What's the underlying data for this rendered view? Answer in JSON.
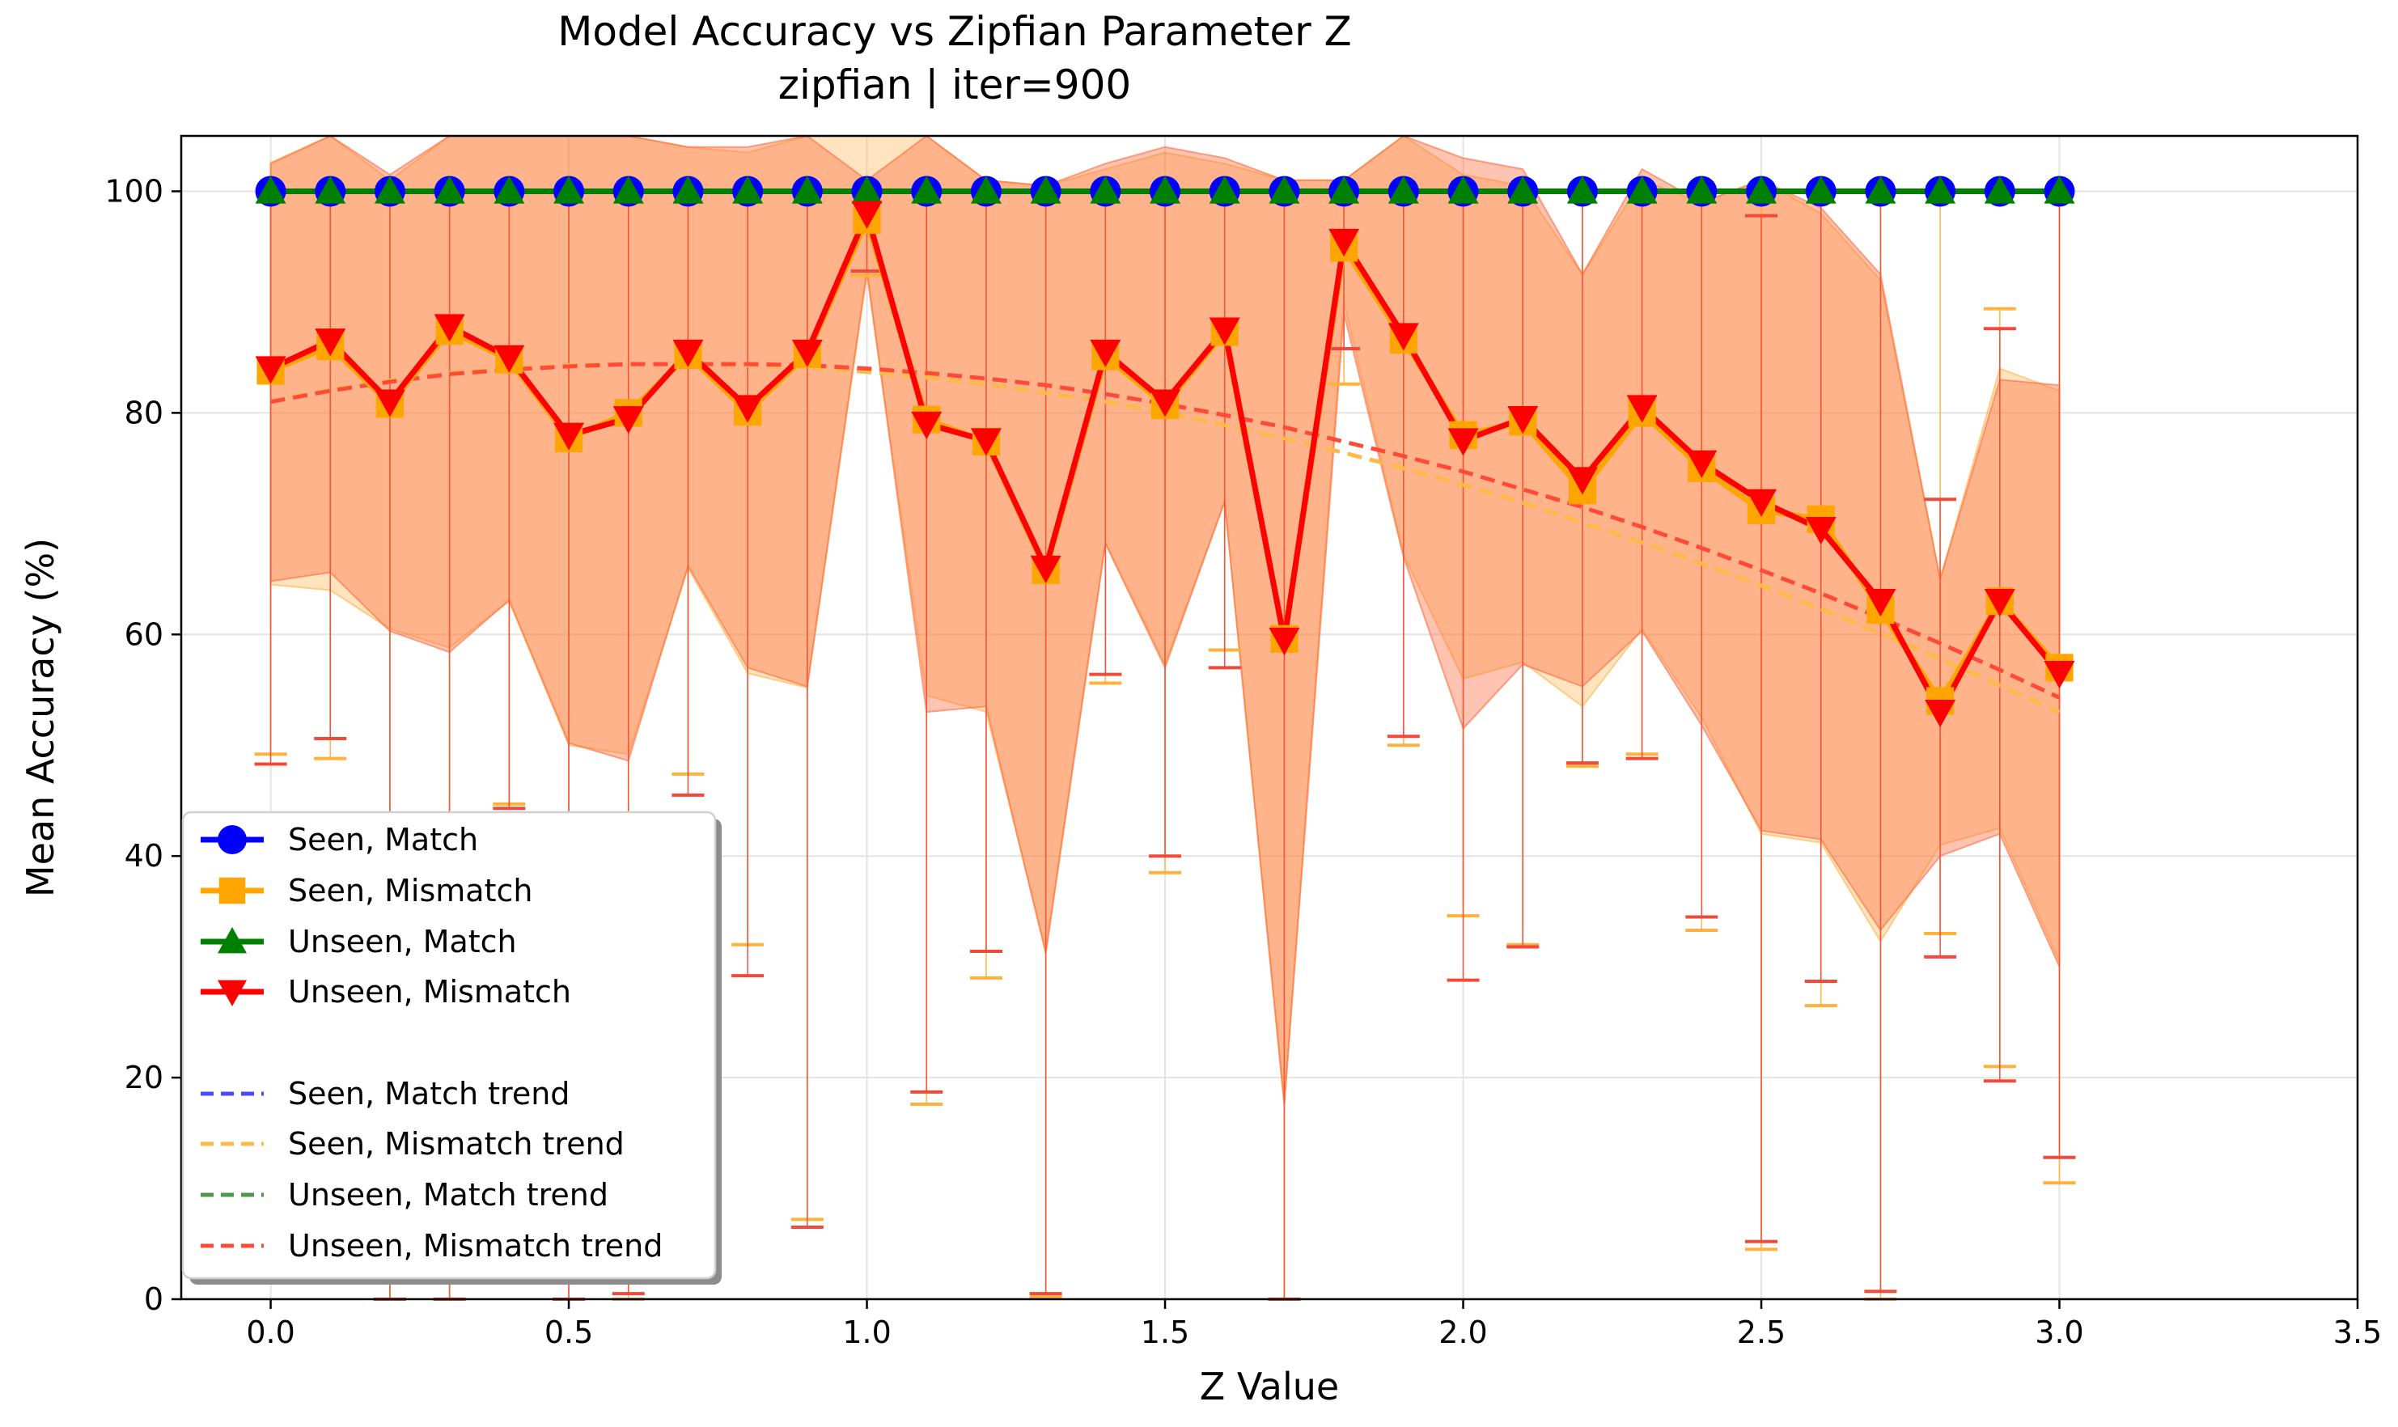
{
  "chart_data": {
    "type": "line",
    "title": "Model Accuracy vs Zipfian Parameter Z",
    "subtitle": "zipfian | iter=900",
    "xlabel": "Z Value",
    "ylabel": "Mean Accuracy (%)",
    "xlim": [
      -0.15,
      3.5
    ],
    "ylim": [
      0,
      105
    ],
    "xticks": [
      "0.0",
      "0.5",
      "1.0",
      "1.5",
      "2.0",
      "2.5",
      "3.0",
      "3.5"
    ],
    "yticks": [
      "0",
      "20",
      "40",
      "60",
      "80",
      "100"
    ],
    "grid": true,
    "legend_position": "lower-left",
    "x": [
      0.0,
      0.1,
      0.2,
      0.3,
      0.4,
      0.5,
      0.6,
      0.7,
      0.8,
      0.9,
      1.0,
      1.1,
      1.2,
      1.3,
      1.4,
      1.5,
      1.6,
      1.7,
      1.8,
      1.9,
      2.0,
      2.1,
      2.2,
      2.3,
      2.4,
      2.5,
      2.6,
      2.7,
      2.8,
      2.9,
      3.0
    ],
    "series": [
      {
        "name": "Seen, Match",
        "color": "#0000ff",
        "marker": "circle",
        "values": [
          100,
          100,
          100,
          100,
          100,
          100,
          100,
          100,
          100,
          100,
          100,
          100,
          100,
          100,
          100,
          100,
          100,
          100,
          100,
          100,
          100,
          100,
          100,
          100,
          100,
          100,
          100,
          100,
          100,
          100,
          100
        ],
        "err_low": [
          100,
          100,
          100,
          100,
          100,
          100,
          100,
          100,
          100,
          100,
          100,
          100,
          100,
          100,
          100,
          100,
          100,
          100,
          100,
          100,
          100,
          100,
          100,
          100,
          100,
          100,
          100,
          100,
          100,
          100,
          100
        ],
        "err_high": [
          100,
          100,
          100,
          100,
          100,
          100,
          100,
          100,
          100,
          100,
          100,
          100,
          100,
          100,
          100,
          100,
          100,
          100,
          100,
          100,
          100,
          100,
          100,
          100,
          100,
          100,
          100,
          100,
          100,
          100,
          100
        ],
        "band_low": [
          100,
          100,
          100,
          100,
          100,
          100,
          100,
          100,
          100,
          100,
          100,
          100,
          100,
          100,
          100,
          100,
          100,
          100,
          100,
          100,
          100,
          100,
          100,
          100,
          100,
          100,
          100,
          100,
          100,
          100,
          100
        ],
        "band_high": [
          100,
          100,
          100,
          100,
          100,
          100,
          100,
          100,
          100,
          100,
          100,
          100,
          100,
          100,
          100,
          100,
          100,
          100,
          100,
          100,
          100,
          100,
          100,
          100,
          100,
          100,
          100,
          100,
          100,
          100,
          100
        ]
      },
      {
        "name": "Seen, Mismatch",
        "color": "#ffa500",
        "marker": "square",
        "values": [
          83.8,
          86.0,
          80.8,
          87.4,
          84.8,
          77.7,
          80.0,
          85.2,
          80.1,
          85.3,
          97.4,
          79.4,
          77.4,
          65.8,
          85.1,
          80.7,
          87.3,
          59.6,
          94.9,
          86.6,
          78.0,
          79.2,
          73.0,
          80.0,
          75.0,
          71.2,
          70.4,
          62.2,
          54.0,
          63.0,
          57.0
        ],
        "err_low": [
          49.2,
          48.8,
          0,
          0,
          44.7,
          0,
          0,
          47.4,
          32.0,
          7.2,
          92.4,
          17.6,
          29.0,
          0.2,
          55.6,
          38.5,
          58.6,
          0,
          82.6,
          50.0,
          34.6,
          32.0,
          48.1,
          49.2,
          33.3,
          4.5,
          26.5,
          0,
          33.0,
          21.0,
          10.5
        ],
        "err_high": [
          100,
          100,
          100,
          100,
          100,
          100,
          100,
          100,
          100,
          100,
          100,
          100,
          100,
          100,
          100,
          100,
          100,
          100,
          100,
          100,
          100,
          100,
          100,
          100,
          100,
          100,
          100,
          100,
          100,
          89.4,
          100
        ],
        "band_low": [
          64.5,
          64.0,
          60.5,
          58.8,
          63.0,
          50.0,
          49.2,
          66.0,
          56.5,
          55.2,
          92.5,
          54.5,
          53.0,
          31.5,
          68.3,
          57.3,
          72.0,
          17.8,
          90.0,
          67.2,
          56.0,
          57.5,
          53.5,
          60.5,
          52.5,
          42.0,
          41.2,
          32.3,
          41.0,
          42.5,
          30.5
        ],
        "band_high": [
          102.6,
          106.0,
          101.0,
          115.0,
          106.0,
          105.0,
          110.0,
          104.0,
          103.5,
          115.0,
          107.0,
          105.0,
          101.0,
          100.5,
          102.0,
          103.5,
          102.5,
          101.0,
          101.0,
          106.0,
          101.5,
          100.5,
          92.5,
          101.0,
          99.0,
          101.0,
          98.0,
          92.0,
          65.0,
          84.0,
          82.0
        ]
      },
      {
        "name": "Unseen, Match",
        "color": "#008000",
        "marker": "triangle-up",
        "values": [
          100,
          100,
          100,
          100,
          100,
          100,
          100,
          100,
          100,
          100,
          100,
          100,
          100,
          100,
          100,
          100,
          100,
          100,
          100,
          100,
          100,
          100,
          100,
          100,
          100,
          100,
          100,
          100,
          100,
          100,
          100
        ],
        "err_low": [
          100,
          100,
          100,
          100,
          100,
          100,
          100,
          100,
          100,
          100,
          100,
          100,
          100,
          100,
          100,
          100,
          100,
          100,
          100,
          100,
          100,
          100,
          100,
          100,
          100,
          100,
          100,
          100,
          100,
          100,
          100
        ],
        "err_high": [
          100,
          100,
          100,
          100,
          100,
          100,
          100,
          100,
          100,
          100,
          100,
          100,
          100,
          100,
          100,
          100,
          100,
          100,
          100,
          100,
          100,
          100,
          100,
          100,
          100,
          100,
          100,
          100,
          100,
          100,
          100
        ],
        "band_low": [
          100,
          100,
          100,
          100,
          100,
          100,
          100,
          100,
          100,
          100,
          100,
          100,
          100,
          100,
          100,
          100,
          100,
          100,
          100,
          100,
          100,
          100,
          100,
          100,
          100,
          100,
          100,
          100,
          100,
          100,
          100
        ],
        "band_high": [
          100,
          100,
          100,
          100,
          100,
          100,
          100,
          100,
          100,
          100,
          100,
          100,
          100,
          100,
          100,
          100,
          100,
          100,
          100,
          100,
          100,
          100,
          100,
          100,
          100,
          100,
          100,
          100,
          100,
          100,
          100
        ]
      },
      {
        "name": "Unseen, Mismatch",
        "color": "#ff0000",
        "marker": "triangle-down",
        "values": [
          84.0,
          86.5,
          81.0,
          87.8,
          85.0,
          78.0,
          79.5,
          85.5,
          80.5,
          85.5,
          98.0,
          79.0,
          77.5,
          66.0,
          85.5,
          81.0,
          87.5,
          59.5,
          95.5,
          87.0,
          77.5,
          79.5,
          74.0,
          80.5,
          75.5,
          72.0,
          69.5,
          63.0,
          53.0,
          63.0,
          56.5
        ],
        "err_low": [
          48.3,
          50.6,
          0,
          0,
          44.3,
          0,
          0.5,
          45.5,
          29.2,
          6.5,
          92.8,
          18.7,
          31.4,
          0.5,
          56.4,
          40.0,
          57.0,
          0,
          85.8,
          50.8,
          28.8,
          31.8,
          48.4,
          48.8,
          34.5,
          5.2,
          28.7,
          0.7,
          30.9,
          19.7,
          12.8
        ],
        "err_high": [
          100,
          100,
          100,
          100,
          100,
          100,
          100,
          100,
          100,
          100,
          100,
          100,
          100,
          100,
          100,
          100,
          100,
          100,
          100,
          100,
          100,
          100,
          100,
          100,
          100,
          97.8,
          100,
          100,
          72.2,
          87.6,
          100
        ],
        "band_low": [
          64.8,
          65.6,
          60.3,
          58.4,
          63.1,
          50.2,
          48.6,
          66.2,
          57.0,
          55.3,
          92.8,
          53.0,
          53.5,
          31.2,
          68.2,
          57.0,
          72.0,
          17.5,
          89.0,
          67.0,
          51.5,
          57.3,
          55.3,
          60.3,
          51.8,
          42.3,
          41.5,
          33.3,
          40.0,
          42.0,
          30.0
        ],
        "band_high": [
          102.5,
          107.0,
          101.5,
          116.0,
          107.0,
          105.5,
          110.0,
          104.0,
          104.0,
          116.0,
          101.0,
          105.0,
          101.0,
          100.5,
          102.5,
          104.0,
          103.0,
          101.0,
          101.0,
          107.0,
          103.0,
          102.0,
          92.5,
          102.0,
          99.0,
          101.0,
          98.5,
          92.5,
          65.0,
          83.0,
          82.5
        ]
      }
    ],
    "trends": [
      {
        "name": "Seen, Match trend",
        "color": "#4a4aff",
        "values": [
          100,
          100,
          100,
          100,
          100,
          100,
          100,
          100,
          100,
          100,
          100,
          100,
          100,
          100,
          100,
          100,
          100,
          100,
          100,
          100,
          100,
          100,
          100,
          100,
          100,
          100,
          100,
          100,
          100,
          100,
          100
        ]
      },
      {
        "name": "Seen, Mismatch trend",
        "color": "#ffb84a",
        "values": [
          81.0,
          82.1,
          82.9,
          83.6,
          84.0,
          84.3,
          84.4,
          84.4,
          84.3,
          84.1,
          83.7,
          83.2,
          82.6,
          81.8,
          81.0,
          80.0,
          78.9,
          77.7,
          76.4,
          75.0,
          73.5,
          71.9,
          70.1,
          68.3,
          66.4,
          64.4,
          62.3,
          60.1,
          57.8,
          55.4,
          53.0
        ]
      },
      {
        "name": "Unseen, Match trend",
        "color": "#4a9a4a",
        "values": [
          100,
          100,
          100,
          100,
          100,
          100,
          100,
          100,
          100,
          100,
          100,
          100,
          100,
          100,
          100,
          100,
          100,
          100,
          100,
          100,
          100,
          100,
          100,
          100,
          100,
          100,
          100,
          100,
          100,
          100,
          100
        ]
      },
      {
        "name": "Unseen, Mismatch trend",
        "color": "#ff4a3a",
        "values": [
          81.0,
          82.0,
          82.8,
          83.5,
          83.9,
          84.2,
          84.4,
          84.4,
          84.4,
          84.3,
          84.0,
          83.6,
          83.1,
          82.5,
          81.7,
          80.8,
          79.8,
          78.7,
          77.4,
          76.1,
          74.7,
          73.1,
          71.5,
          69.7,
          67.8,
          65.8,
          63.7,
          61.5,
          59.2,
          56.8,
          54.3
        ]
      }
    ]
  }
}
